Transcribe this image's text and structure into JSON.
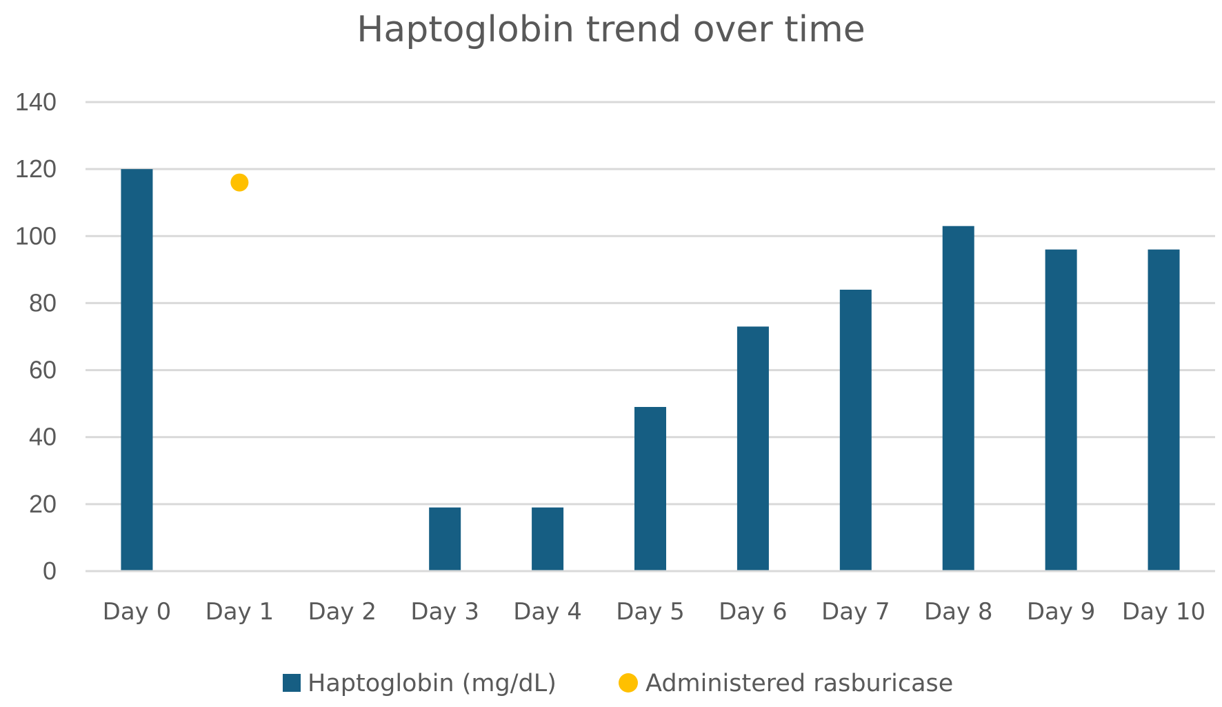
{
  "chart_data": {
    "type": "bar",
    "title": "Haptoglobin trend over time",
    "xlabel": "",
    "ylabel": "",
    "categories": [
      "Day 0",
      "Day 1",
      "Day 2",
      "Day 3",
      "Day 4",
      "Day 5",
      "Day 6",
      "Day 7",
      "Day 8",
      "Day 9",
      "Day 10"
    ],
    "ylim": [
      0,
      140
    ],
    "yticks": [
      "0",
      "20",
      "40",
      "60",
      "80",
      "100",
      "120",
      "140"
    ],
    "grid": true,
    "legend_position": "bottom",
    "series": [
      {
        "name": "Haptoglobin (mg/dL)",
        "kind": "bar",
        "color": "#165e83",
        "values": [
          120,
          0,
          0,
          19,
          19,
          49,
          73,
          84,
          103,
          96,
          96
        ]
      },
      {
        "name": "Administered rasburicase",
        "kind": "marker",
        "color": "#ffc000",
        "values": [
          null,
          116,
          null,
          null,
          null,
          null,
          null,
          null,
          null,
          null,
          null
        ]
      }
    ]
  }
}
